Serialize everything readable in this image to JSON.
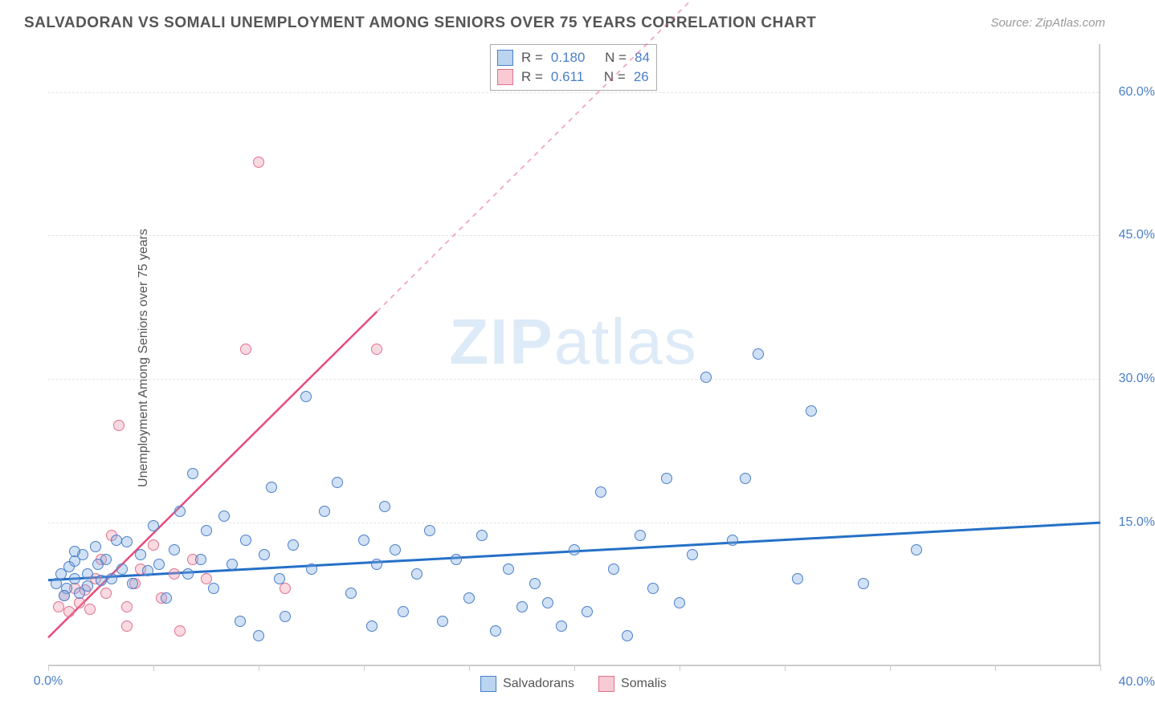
{
  "title": "SALVADORAN VS SOMALI UNEMPLOYMENT AMONG SENIORS OVER 75 YEARS CORRELATION CHART",
  "source": "Source: ZipAtlas.com",
  "y_axis_label": "Unemployment Among Seniors over 75 years",
  "watermark": {
    "part1": "ZIP",
    "part2": "atlas"
  },
  "chart": {
    "type": "scatter",
    "x_min": 0.0,
    "x_max": 40.0,
    "y_min": 0.0,
    "y_max": 65.0,
    "y_ticks": [
      15.0,
      30.0,
      45.0,
      60.0
    ],
    "y_tick_labels": [
      "15.0%",
      "30.0%",
      "45.0%",
      "60.0%"
    ],
    "x_ticks": [
      0,
      4,
      8,
      12,
      16,
      20,
      24,
      28,
      32,
      36,
      40
    ],
    "x_origin_label": "0.0%",
    "x_max_label": "40.0%",
    "background_color": "#ffffff",
    "grid_color": "#e5e5e5",
    "grid_style": "dashed",
    "axis_color": "#cccccc",
    "tick_label_color": "#4a7fc9",
    "tick_fontsize": 16,
    "title_fontsize": 19,
    "title_color": "#555555",
    "point_radius": 7
  },
  "series": {
    "salvadorans": {
      "label": "Salvadorans",
      "fill_color": "rgba(120,170,225,0.35)",
      "stroke_color": "#4a7fc9",
      "R": "0.180",
      "N": "84",
      "trend": {
        "y_at_xmin": 9.0,
        "y_at_xmax": 15.0,
        "color": "#2570c7",
        "width": 3,
        "dashed_after_x": null
      },
      "points": [
        [
          0.3,
          8.5
        ],
        [
          0.5,
          9.5
        ],
        [
          0.7,
          8.0
        ],
        [
          0.8,
          10.2
        ],
        [
          1.0,
          9.0
        ],
        [
          1.0,
          10.8
        ],
        [
          1.2,
          7.5
        ],
        [
          1.3,
          11.5
        ],
        [
          1.5,
          9.5
        ],
        [
          1.5,
          8.2
        ],
        [
          1.8,
          12.3
        ],
        [
          1.9,
          10.5
        ],
        [
          2.0,
          8.8
        ],
        [
          2.2,
          11.0
        ],
        [
          2.4,
          9.0
        ],
        [
          2.6,
          13.0
        ],
        [
          2.8,
          10.0
        ],
        [
          3.0,
          12.8
        ],
        [
          3.2,
          8.5
        ],
        [
          3.5,
          11.5
        ],
        [
          3.8,
          9.8
        ],
        [
          4.0,
          14.5
        ],
        [
          4.2,
          10.5
        ],
        [
          4.5,
          7.0
        ],
        [
          4.8,
          12.0
        ],
        [
          5.0,
          16.0
        ],
        [
          5.3,
          9.5
        ],
        [
          5.5,
          20.0
        ],
        [
          5.8,
          11.0
        ],
        [
          6.0,
          14.0
        ],
        [
          6.3,
          8.0
        ],
        [
          6.7,
          15.5
        ],
        [
          7.0,
          10.5
        ],
        [
          7.3,
          4.5
        ],
        [
          7.5,
          13.0
        ],
        [
          8.0,
          3.0
        ],
        [
          8.2,
          11.5
        ],
        [
          8.5,
          18.5
        ],
        [
          8.8,
          9.0
        ],
        [
          9.0,
          5.0
        ],
        [
          9.3,
          12.5
        ],
        [
          9.8,
          28.0
        ],
        [
          10.0,
          10.0
        ],
        [
          10.5,
          16.0
        ],
        [
          11.0,
          19.0
        ],
        [
          11.5,
          7.5
        ],
        [
          12.0,
          13.0
        ],
        [
          12.3,
          4.0
        ],
        [
          12.5,
          10.5
        ],
        [
          12.8,
          16.5
        ],
        [
          13.2,
          12.0
        ],
        [
          13.5,
          5.5
        ],
        [
          14.0,
          9.5
        ],
        [
          14.5,
          14.0
        ],
        [
          15.0,
          4.5
        ],
        [
          15.5,
          11.0
        ],
        [
          16.0,
          7.0
        ],
        [
          16.5,
          13.5
        ],
        [
          17.0,
          3.5
        ],
        [
          17.5,
          10.0
        ],
        [
          18.0,
          6.0
        ],
        [
          18.5,
          8.5
        ],
        [
          19.0,
          6.5
        ],
        [
          19.5,
          4.0
        ],
        [
          20.0,
          12.0
        ],
        [
          20.5,
          5.5
        ],
        [
          21.0,
          18.0
        ],
        [
          21.5,
          10.0
        ],
        [
          22.0,
          3.0
        ],
        [
          22.5,
          13.5
        ],
        [
          23.0,
          8.0
        ],
        [
          23.5,
          19.5
        ],
        [
          24.0,
          6.5
        ],
        [
          24.5,
          11.5
        ],
        [
          25.0,
          30.0
        ],
        [
          26.0,
          13.0
        ],
        [
          26.5,
          19.5
        ],
        [
          27.0,
          32.5
        ],
        [
          28.5,
          9.0
        ],
        [
          29.0,
          26.5
        ],
        [
          31.0,
          8.5
        ],
        [
          33.0,
          12.0
        ],
        [
          1.0,
          11.8
        ],
        [
          0.6,
          7.2
        ]
      ]
    },
    "somalis": {
      "label": "Somalis",
      "fill_color": "rgba(240,150,170,0.35)",
      "stroke_color": "#e07090",
      "R": "0.611",
      "N": "26",
      "trend": {
        "y_at_xmin": 3.0,
        "y_at_xmax": 112.0,
        "color": "#e74b7b",
        "width": 2.5,
        "dashed_after_x": 12.5
      },
      "points": [
        [
          0.4,
          6.0
        ],
        [
          0.6,
          7.2
        ],
        [
          0.8,
          5.5
        ],
        [
          1.0,
          8.0
        ],
        [
          1.2,
          6.5
        ],
        [
          1.4,
          7.8
        ],
        [
          1.6,
          5.8
        ],
        [
          1.8,
          9.0
        ],
        [
          2.0,
          11.0
        ],
        [
          2.2,
          7.5
        ],
        [
          2.4,
          13.5
        ],
        [
          2.7,
          25.0
        ],
        [
          3.0,
          6.0
        ],
        [
          3.0,
          4.0
        ],
        [
          3.3,
          8.5
        ],
        [
          3.5,
          10.0
        ],
        [
          4.0,
          12.5
        ],
        [
          4.3,
          7.0
        ],
        [
          4.8,
          9.5
        ],
        [
          5.0,
          3.5
        ],
        [
          5.5,
          11.0
        ],
        [
          6.0,
          9.0
        ],
        [
          7.5,
          33.0
        ],
        [
          8.0,
          52.5
        ],
        [
          9.0,
          8.0
        ],
        [
          12.5,
          33.0
        ]
      ]
    }
  },
  "legend_top": {
    "rows": [
      {
        "swatch": "sal",
        "R_label": "R =",
        "R_val": "0.180",
        "N_label": "N =",
        "N_val": "84"
      },
      {
        "swatch": "som",
        "R_label": "R =",
        "R_val": "0.611",
        "N_label": "N =",
        "N_val": "26"
      }
    ]
  },
  "legend_bottom": [
    {
      "swatch": "sal",
      "label": "Salvadorans"
    },
    {
      "swatch": "som",
      "label": "Somalis"
    }
  ]
}
